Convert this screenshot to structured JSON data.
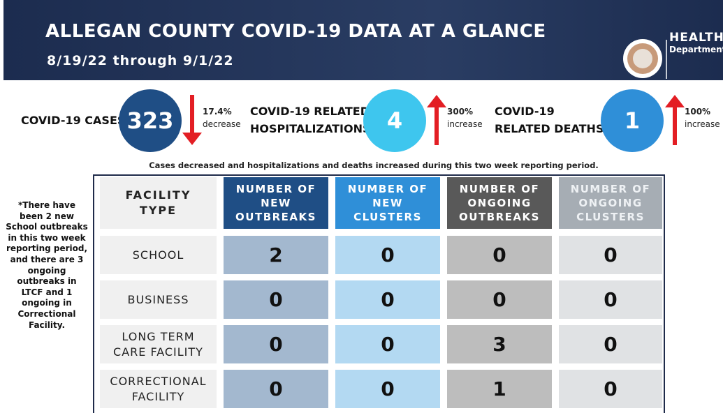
{
  "header": {
    "title": "ALLEGAN COUNTY COVID-19 DATA AT A GLANCE",
    "subtitle": "8/19/22 through 9/1/22",
    "logo_line1": "HEALTH",
    "logo_line2": "Department"
  },
  "stats": [
    {
      "label": [
        "COVID-19 CASES"
      ],
      "value": 323,
      "change": "17.4%",
      "change_label": "decrease",
      "direction": "down",
      "color": "#1f4e85"
    },
    {
      "label": [
        "COVID-19 RELATED",
        "HOSPITALIZATIONS"
      ],
      "value": 4,
      "change": "300%",
      "change_label": "increase",
      "direction": "up",
      "color": "#3ec6ee"
    },
    {
      "label": [
        "COVID-19",
        "RELATED DEATHS"
      ],
      "value": 1,
      "change": "100%",
      "change_label": "increase",
      "direction": "up",
      "color": "#2f8fd8"
    }
  ],
  "note": "Cases decreased and hospitalizations and deaths increased during this two week reporting period.",
  "side_note": "*There have been 2 new School outbreaks in this two week reporting period, and there are 3 ongoing outbreaks in LTCF and 1 ongoing in Correctional Facility.",
  "table": {
    "headers": [
      [
        "FACILITY",
        "TYPE"
      ],
      [
        "NUMBER OF",
        "NEW",
        "OUTBREAKS"
      ],
      [
        "NUMBER OF",
        "NEW",
        "CLUSTERS"
      ],
      [
        "NUMBER OF",
        "ONGOING",
        "OUTBREAKS"
      ],
      [
        "NUMBER OF",
        "ONGOING",
        "CLUSTERS"
      ]
    ],
    "rows": [
      [
        [
          "SCHOOL"
        ],
        2,
        0,
        0,
        0
      ],
      [
        [
          "BUSINESS"
        ],
        0,
        0,
        0,
        0
      ],
      [
        [
          "LONG TERM",
          "CARE FACILITY"
        ],
        0,
        0,
        3,
        0
      ],
      [
        [
          "CORRECTIONAL",
          "FACILITY"
        ],
        0,
        0,
        1,
        0
      ]
    ]
  }
}
